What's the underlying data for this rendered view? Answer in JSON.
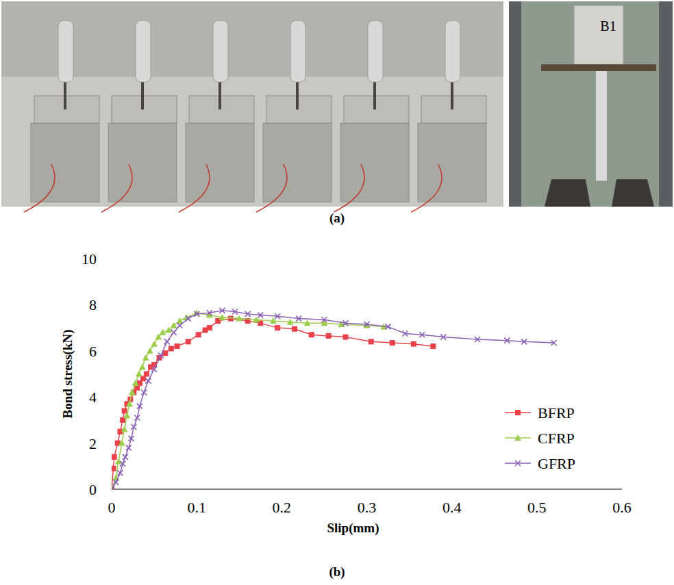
{
  "chart_data": {
    "type": "line",
    "xlabel": "Slip(mm)",
    "ylabel": "Bond stress(kN)",
    "xlim": [
      0,
      0.6
    ],
    "xticks": [
      0,
      0.1,
      0.2,
      0.3,
      0.4,
      0.5,
      0.6
    ],
    "ylim": [
      0,
      10
    ],
    "yticks": [
      0,
      2,
      4,
      6,
      8,
      10
    ],
    "grid": false,
    "legend": "right",
    "series": [
      {
        "name": "BFRP",
        "color": "#e8414a",
        "marker": "square",
        "line_style": "solid",
        "x": [
          0,
          0.002,
          0.003,
          0.007,
          0.01,
          0.013,
          0.015,
          0.018,
          0.022,
          0.026,
          0.03,
          0.033,
          0.037,
          0.041,
          0.046,
          0.05,
          0.056,
          0.063,
          0.07,
          0.077,
          0.09,
          0.102,
          0.11,
          0.115,
          0.125,
          0.14,
          0.16,
          0.175,
          0.195,
          0.215,
          0.235,
          0.255,
          0.275,
          0.305,
          0.33,
          0.355,
          0.378
        ],
        "values": [
          0,
          0.9,
          1.4,
          2.0,
          2.5,
          3.0,
          3.4,
          3.7,
          3.9,
          4.2,
          4.4,
          4.6,
          4.8,
          5.0,
          5.3,
          5.4,
          5.7,
          5.9,
          6.1,
          6.2,
          6.4,
          6.7,
          6.9,
          7.0,
          7.3,
          7.4,
          7.3,
          7.2,
          7.0,
          6.95,
          6.7,
          6.65,
          6.6,
          6.4,
          6.35,
          6.3,
          6.2
        ]
      },
      {
        "name": "CFRP",
        "color": "#9acd4b",
        "marker": "triangle",
        "line_style": "solid",
        "x": [
          0,
          0.005,
          0.008,
          0.012,
          0.015,
          0.018,
          0.021,
          0.024,
          0.028,
          0.032,
          0.036,
          0.04,
          0.045,
          0.05,
          0.055,
          0.06,
          0.067,
          0.073,
          0.08,
          0.088,
          0.1,
          0.115,
          0.13,
          0.15,
          0.17,
          0.19,
          0.21,
          0.23,
          0.25,
          0.27,
          0.3,
          0.32
        ],
        "values": [
          0,
          0.5,
          1.2,
          2.0,
          2.6,
          3.2,
          3.7,
          4.2,
          4.6,
          5.0,
          5.3,
          5.7,
          6.0,
          6.3,
          6.6,
          6.8,
          6.9,
          7.1,
          7.3,
          7.45,
          7.65,
          7.55,
          7.45,
          7.4,
          7.35,
          7.3,
          7.25,
          7.2,
          7.2,
          7.15,
          7.1,
          7.05
        ]
      },
      {
        "name": "GFRP",
        "color": "#8a5fb5",
        "marker": "x",
        "line_style": "solid",
        "x": [
          0,
          0.005,
          0.01,
          0.013,
          0.016,
          0.02,
          0.023,
          0.026,
          0.03,
          0.033,
          0.038,
          0.043,
          0.05,
          0.058,
          0.065,
          0.073,
          0.08,
          0.09,
          0.1,
          0.115,
          0.13,
          0.145,
          0.16,
          0.175,
          0.195,
          0.22,
          0.25,
          0.275,
          0.3,
          0.325,
          0.345,
          0.365,
          0.39,
          0.43,
          0.465,
          0.485,
          0.52
        ],
        "values": [
          0,
          0.3,
          0.7,
          1.1,
          1.4,
          1.8,
          2.2,
          2.7,
          3.1,
          3.6,
          4.2,
          4.7,
          5.2,
          5.8,
          6.4,
          6.8,
          7.1,
          7.4,
          7.6,
          7.65,
          7.75,
          7.7,
          7.6,
          7.55,
          7.5,
          7.4,
          7.35,
          7.2,
          7.15,
          7.05,
          6.75,
          6.7,
          6.6,
          6.5,
          6.45,
          6.4,
          6.35
        ]
      }
    ]
  },
  "panel_labels": [
    "(a)",
    "(b)"
  ],
  "photo_texts": [
    "B1"
  ]
}
